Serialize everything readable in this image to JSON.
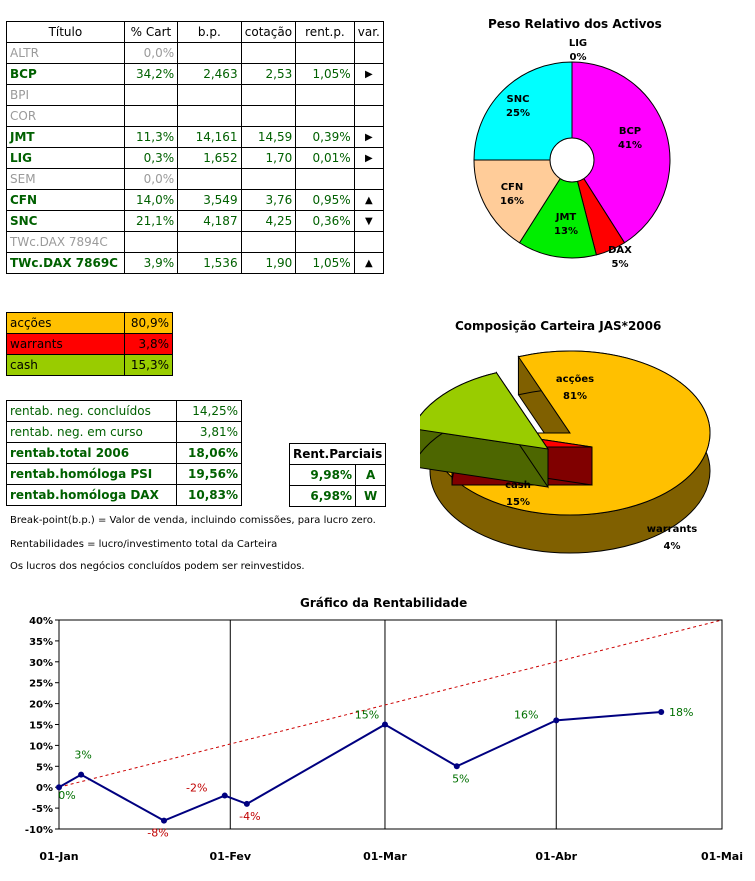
{
  "portfolio_table": {
    "headers": [
      "Título",
      "% Cart",
      "b.p.",
      "cotação",
      "rent.p.",
      "var."
    ],
    "rows": [
      {
        "name": "ALTR",
        "pct": "0,0%",
        "bp": "",
        "cot": "",
        "rent": "",
        "var": "",
        "active": false
      },
      {
        "name": "BCP",
        "pct": "34,2%",
        "bp": "2,463",
        "cot": "2,53",
        "rent": "1,05%",
        "var": "▶",
        "active": true
      },
      {
        "name": "BPI",
        "pct": "",
        "bp": "",
        "cot": "",
        "rent": "",
        "var": "",
        "active": false
      },
      {
        "name": "COR",
        "pct": "",
        "bp": "",
        "cot": "",
        "rent": "",
        "var": "",
        "active": false
      },
      {
        "name": "JMT",
        "pct": "11,3%",
        "bp": "14,161",
        "cot": "14,59",
        "rent": "0,39%",
        "var": "▶",
        "active": true
      },
      {
        "name": "LIG",
        "pct": "0,3%",
        "bp": "1,652",
        "cot": "1,70",
        "rent": "0,01%",
        "var": "▶",
        "active": true
      },
      {
        "name": "SEM",
        "pct": "0,0%",
        "bp": "",
        "cot": "",
        "rent": "",
        "var": "",
        "active": false
      },
      {
        "name": "CFN",
        "pct": "14,0%",
        "bp": "3,549",
        "cot": "3,76",
        "rent": "0,95%",
        "var": "▲",
        "active": true
      },
      {
        "name": "SNC",
        "pct": "21,1%",
        "bp": "4,187",
        "cot": "4,25",
        "rent": "0,36%",
        "var": "▼",
        "active": true
      },
      {
        "name": "TWc.DAX 7894C",
        "pct": "",
        "bp": "",
        "cot": "",
        "rent": "",
        "var": "",
        "active": false
      },
      {
        "name": "TWc.DAX 7869C",
        "pct": "3,9%",
        "bp": "1,536",
        "cot": "1,90",
        "rent": "1,05%",
        "var": "▲",
        "active": true
      }
    ]
  },
  "allocation_table": [
    {
      "label": "acções",
      "value": "80,9%",
      "color": "#ffc000"
    },
    {
      "label": "warrants",
      "value": "3,8%",
      "color": "#ff0000"
    },
    {
      "label": "cash",
      "value": "15,3%",
      "color": "#99cc00"
    }
  ],
  "returns_table": [
    {
      "label": "rentab. neg. concluídos",
      "value": "14,25%",
      "bold": false
    },
    {
      "label": "rentab. neg. em curso",
      "value": "3,81%",
      "bold": false
    },
    {
      "label": "rentab.total 2006",
      "value": "18,06%",
      "bold": true
    },
    {
      "label": "rentab.homóloga PSI",
      "value": "19,56%",
      "bold": true
    },
    {
      "label": "rentab.homóloga DAX",
      "value": "10,83%",
      "bold": true
    }
  ],
  "partial_table": {
    "header": "Rent.Parciais",
    "rows": [
      {
        "value": "9,98%",
        "letter": "A"
      },
      {
        "value": "6,98%",
        "letter": "W"
      }
    ]
  },
  "notes": [
    "Break-point(b.p.) = Valor de venda, incluindo comissões, para lucro zero.",
    "Rentabilidades = lucro/investimento total da Carteira",
    "Os lucros dos negócios concluídos podem ser reinvestidos."
  ],
  "chart_data": [
    {
      "type": "pie",
      "title": "Peso Relativo dos Activos",
      "categories": [
        "LIG",
        "BCP",
        "DAX",
        "JMT",
        "CFN",
        "SNC"
      ],
      "values": [
        0,
        41,
        5,
        13,
        16,
        25
      ],
      "labels": [
        "0%",
        "41%",
        "5%",
        "13%",
        "16%",
        "25%"
      ],
      "colors": [
        "#0000ff",
        "#ff00ff",
        "#ff0000",
        "#00ee00",
        "#ffcc99",
        "#00ffff"
      ],
      "doughnut": true
    },
    {
      "type": "pie",
      "title": "Composição Carteira JAS*2006",
      "categories": [
        "acções",
        "warrants",
        "cash"
      ],
      "values": [
        81,
        4,
        15
      ],
      "labels": [
        "81%",
        "4%",
        "15%"
      ],
      "colors": [
        "#ffc000",
        "#ff0000",
        "#99cc00"
      ],
      "three_d": true
    },
    {
      "type": "line",
      "title": "Gráfico da Rentabilidade",
      "x": [
        "01-Jan",
        "05-Jan",
        "20-Jan",
        "31-Jan",
        "04-Fev",
        "01-Mar",
        "14-Mar",
        "01-Abr",
        "20-Abr"
      ],
      "series": [
        {
          "values": [
            0,
            3,
            -8,
            -2,
            -4,
            15,
            5,
            16,
            18
          ],
          "labels": [
            "0%",
            "3%",
            "-8%",
            "-2%",
            "-4%",
            "15%",
            "5%",
            "16%",
            "18%"
          ],
          "color": "#000080"
        },
        {
          "values": [
            0,
            40
          ],
          "x": [
            "01-Jan",
            "01-Mai"
          ],
          "color": "#cc0000",
          "dashed": true
        }
      ],
      "x_ticks": [
        "01-Jan",
        "01-Fev",
        "01-Mar",
        "01-Abr",
        "01-Mai"
      ],
      "y_ticks": [
        "40%",
        "35%",
        "30%",
        "25%",
        "20%",
        "15%",
        "10%",
        "5%",
        "0%",
        "-5%",
        "-10%"
      ],
      "ylim": [
        -10,
        40
      ],
      "grid": "vertical"
    }
  ]
}
